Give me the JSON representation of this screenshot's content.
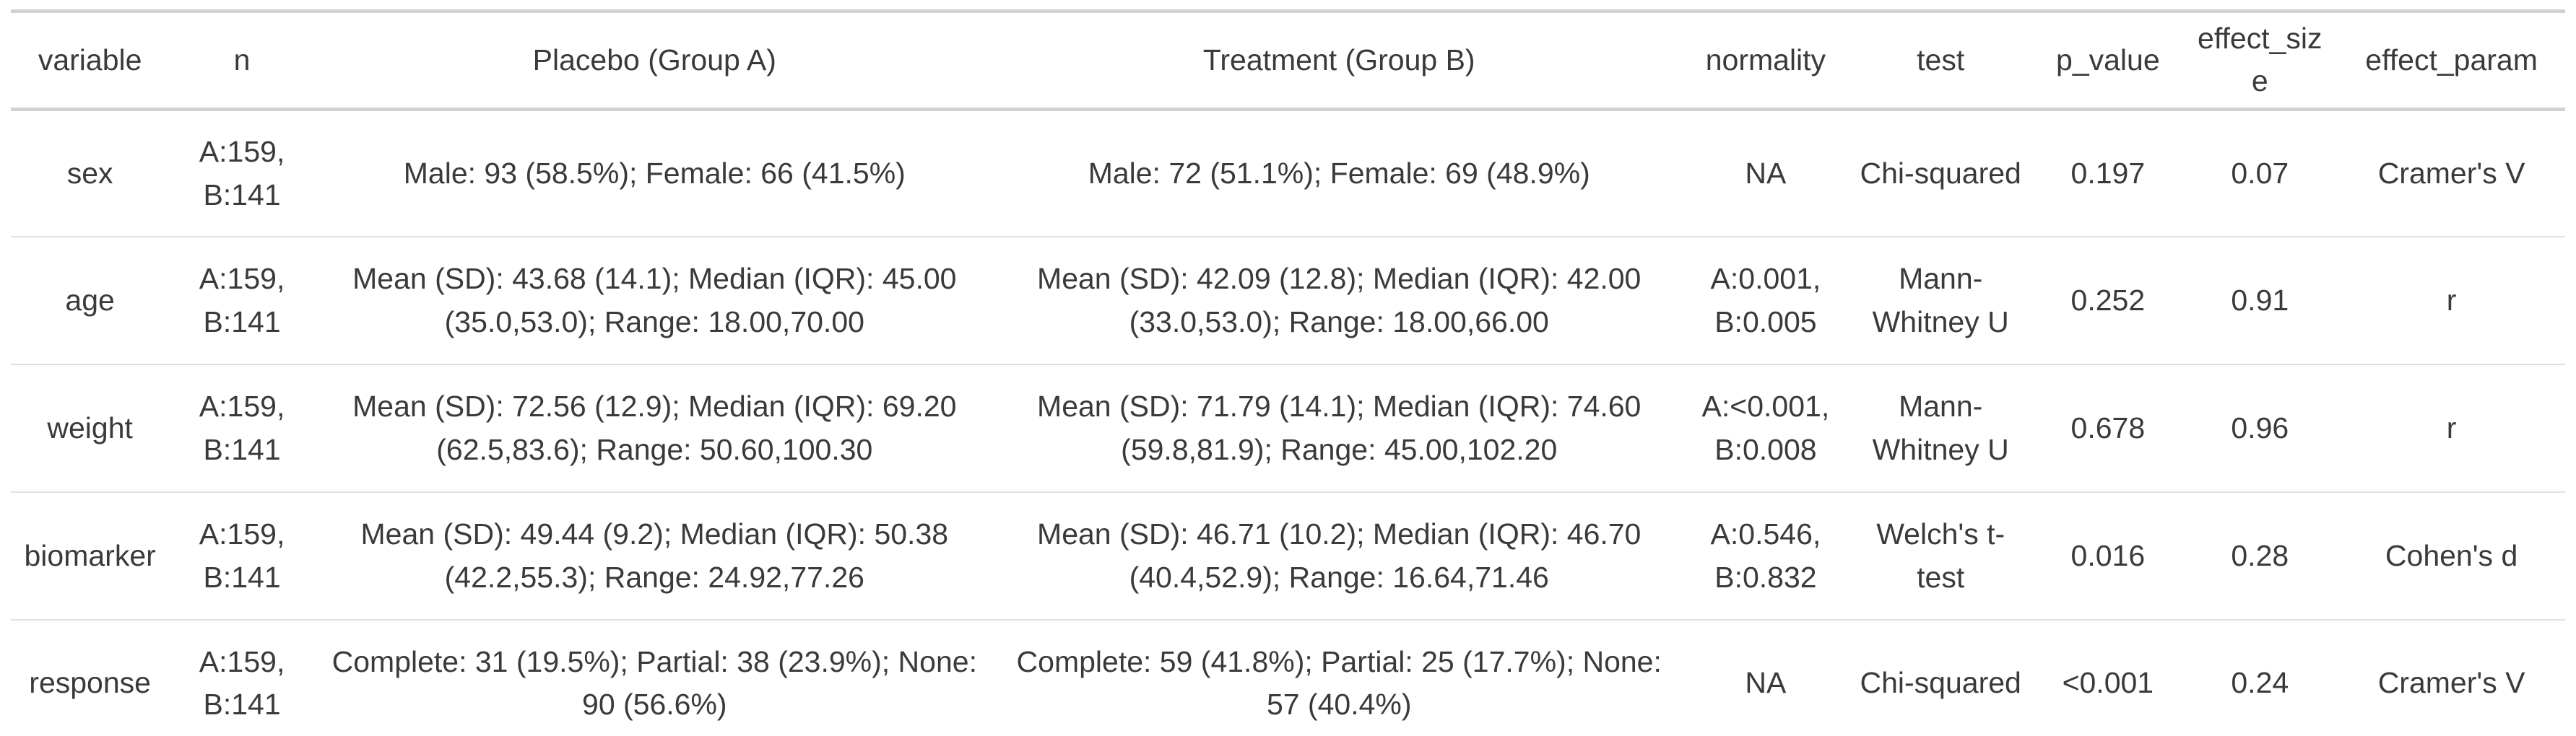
{
  "table": {
    "headers": {
      "variable": "variable",
      "n": "n",
      "placebo": "Placebo (Group A)",
      "treatment": "Treatment (Group B)",
      "normality": "normality",
      "test": "test",
      "p_value": "p_value",
      "effect_size": "effect_size",
      "effect_param": "effect_param"
    },
    "rows": [
      {
        "variable": "sex",
        "n": "A:159, B:141",
        "placebo": "Male: 93 (58.5%); Female: 66 (41.5%)",
        "treatment": "Male: 72 (51.1%); Female: 69 (48.9%)",
        "normality": "NA",
        "test": "Chi-squared",
        "p_value": "0.197",
        "effect_size": "0.07",
        "effect_param": "Cramer's V"
      },
      {
        "variable": "age",
        "n": "A:159, B:141",
        "placebo": "Mean (SD): 43.68 (14.1); Median (IQR): 45.00 (35.0,53.0); Range: 18.00,70.00",
        "treatment": "Mean (SD): 42.09 (12.8); Median (IQR): 42.00 (33.0,53.0); Range: 18.00,66.00",
        "normality": "A:0.001, B:0.005",
        "test": "Mann-Whitney U",
        "p_value": "0.252",
        "effect_size": "0.91",
        "effect_param": "r"
      },
      {
        "variable": "weight",
        "n": "A:159, B:141",
        "placebo": "Mean (SD): 72.56 (12.9); Median (IQR): 69.20 (62.5,83.6); Range: 50.60,100.30",
        "treatment": "Mean (SD): 71.79 (14.1); Median (IQR): 74.60 (59.8,81.9); Range: 45.00,102.20",
        "normality": "A:<0.001, B:0.008",
        "test": "Mann-Whitney U",
        "p_value": "0.678",
        "effect_size": "0.96",
        "effect_param": "r"
      },
      {
        "variable": "biomarker",
        "n": "A:159, B:141",
        "placebo": "Mean (SD): 49.44 (9.2); Median (IQR): 50.38 (42.2,55.3); Range: 24.92,77.26",
        "treatment": "Mean (SD): 46.71 (10.2); Median (IQR): 46.70 (40.4,52.9); Range: 16.64,71.46",
        "normality": "A:0.546, B:0.832",
        "test": "Welch's t-test",
        "p_value": "0.016",
        "effect_size": "0.28",
        "effect_param": "Cohen's d"
      },
      {
        "variable": "response",
        "n": "A:159, B:141",
        "placebo": "Complete: 31 (19.5%); Partial: 38 (23.9%); None: 90 (56.6%)",
        "treatment": "Complete: 59 (41.8%); Partial: 25 (17.7%); None: 57 (40.4%)",
        "normality": "NA",
        "test": "Chi-squared",
        "p_value": "<0.001",
        "effect_size": "0.24",
        "effect_param": "Cramer's V"
      }
    ]
  },
  "colors": {
    "text": "#3a3a3a",
    "border_thick": "#d2d2d2",
    "border_thin": "#e0e0e0",
    "background": "#ffffff"
  }
}
